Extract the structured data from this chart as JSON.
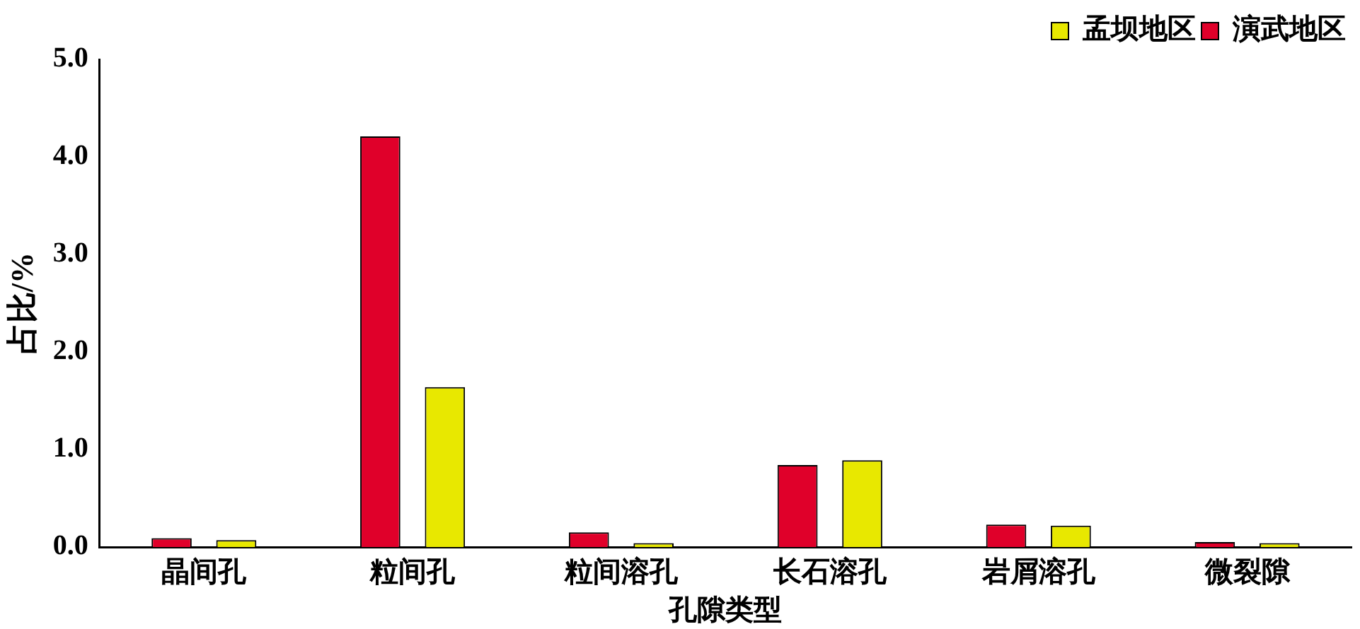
{
  "chart_data": {
    "type": "bar",
    "xlabel": "孔隙类型",
    "ylabel": "占比/%",
    "categories": [
      "晶间孔",
      "粒间孔",
      "粒间溶孔",
      "长石溶孔",
      "岩屑溶孔",
      "微裂隙"
    ],
    "series": [
      {
        "name": "演武地区",
        "color": "#e0002a",
        "values": [
          0.09,
          4.21,
          0.15,
          0.84,
          0.23,
          0.05
        ]
      },
      {
        "name": "孟坝地区",
        "color": "#e8e800",
        "values": [
          0.07,
          1.64,
          0.04,
          0.89,
          0.22,
          0.04
        ]
      }
    ],
    "ylim": [
      0,
      5
    ],
    "yticks": [
      {
        "value": 0,
        "label": "0.0"
      },
      {
        "value": 1,
        "label": "1.0"
      },
      {
        "value": 2,
        "label": "2.0"
      },
      {
        "value": 3,
        "label": "3.0"
      },
      {
        "value": 4,
        "label": "4.0"
      },
      {
        "value": 5,
        "label": "5.0"
      }
    ],
    "grid": false,
    "legend": "top right"
  }
}
